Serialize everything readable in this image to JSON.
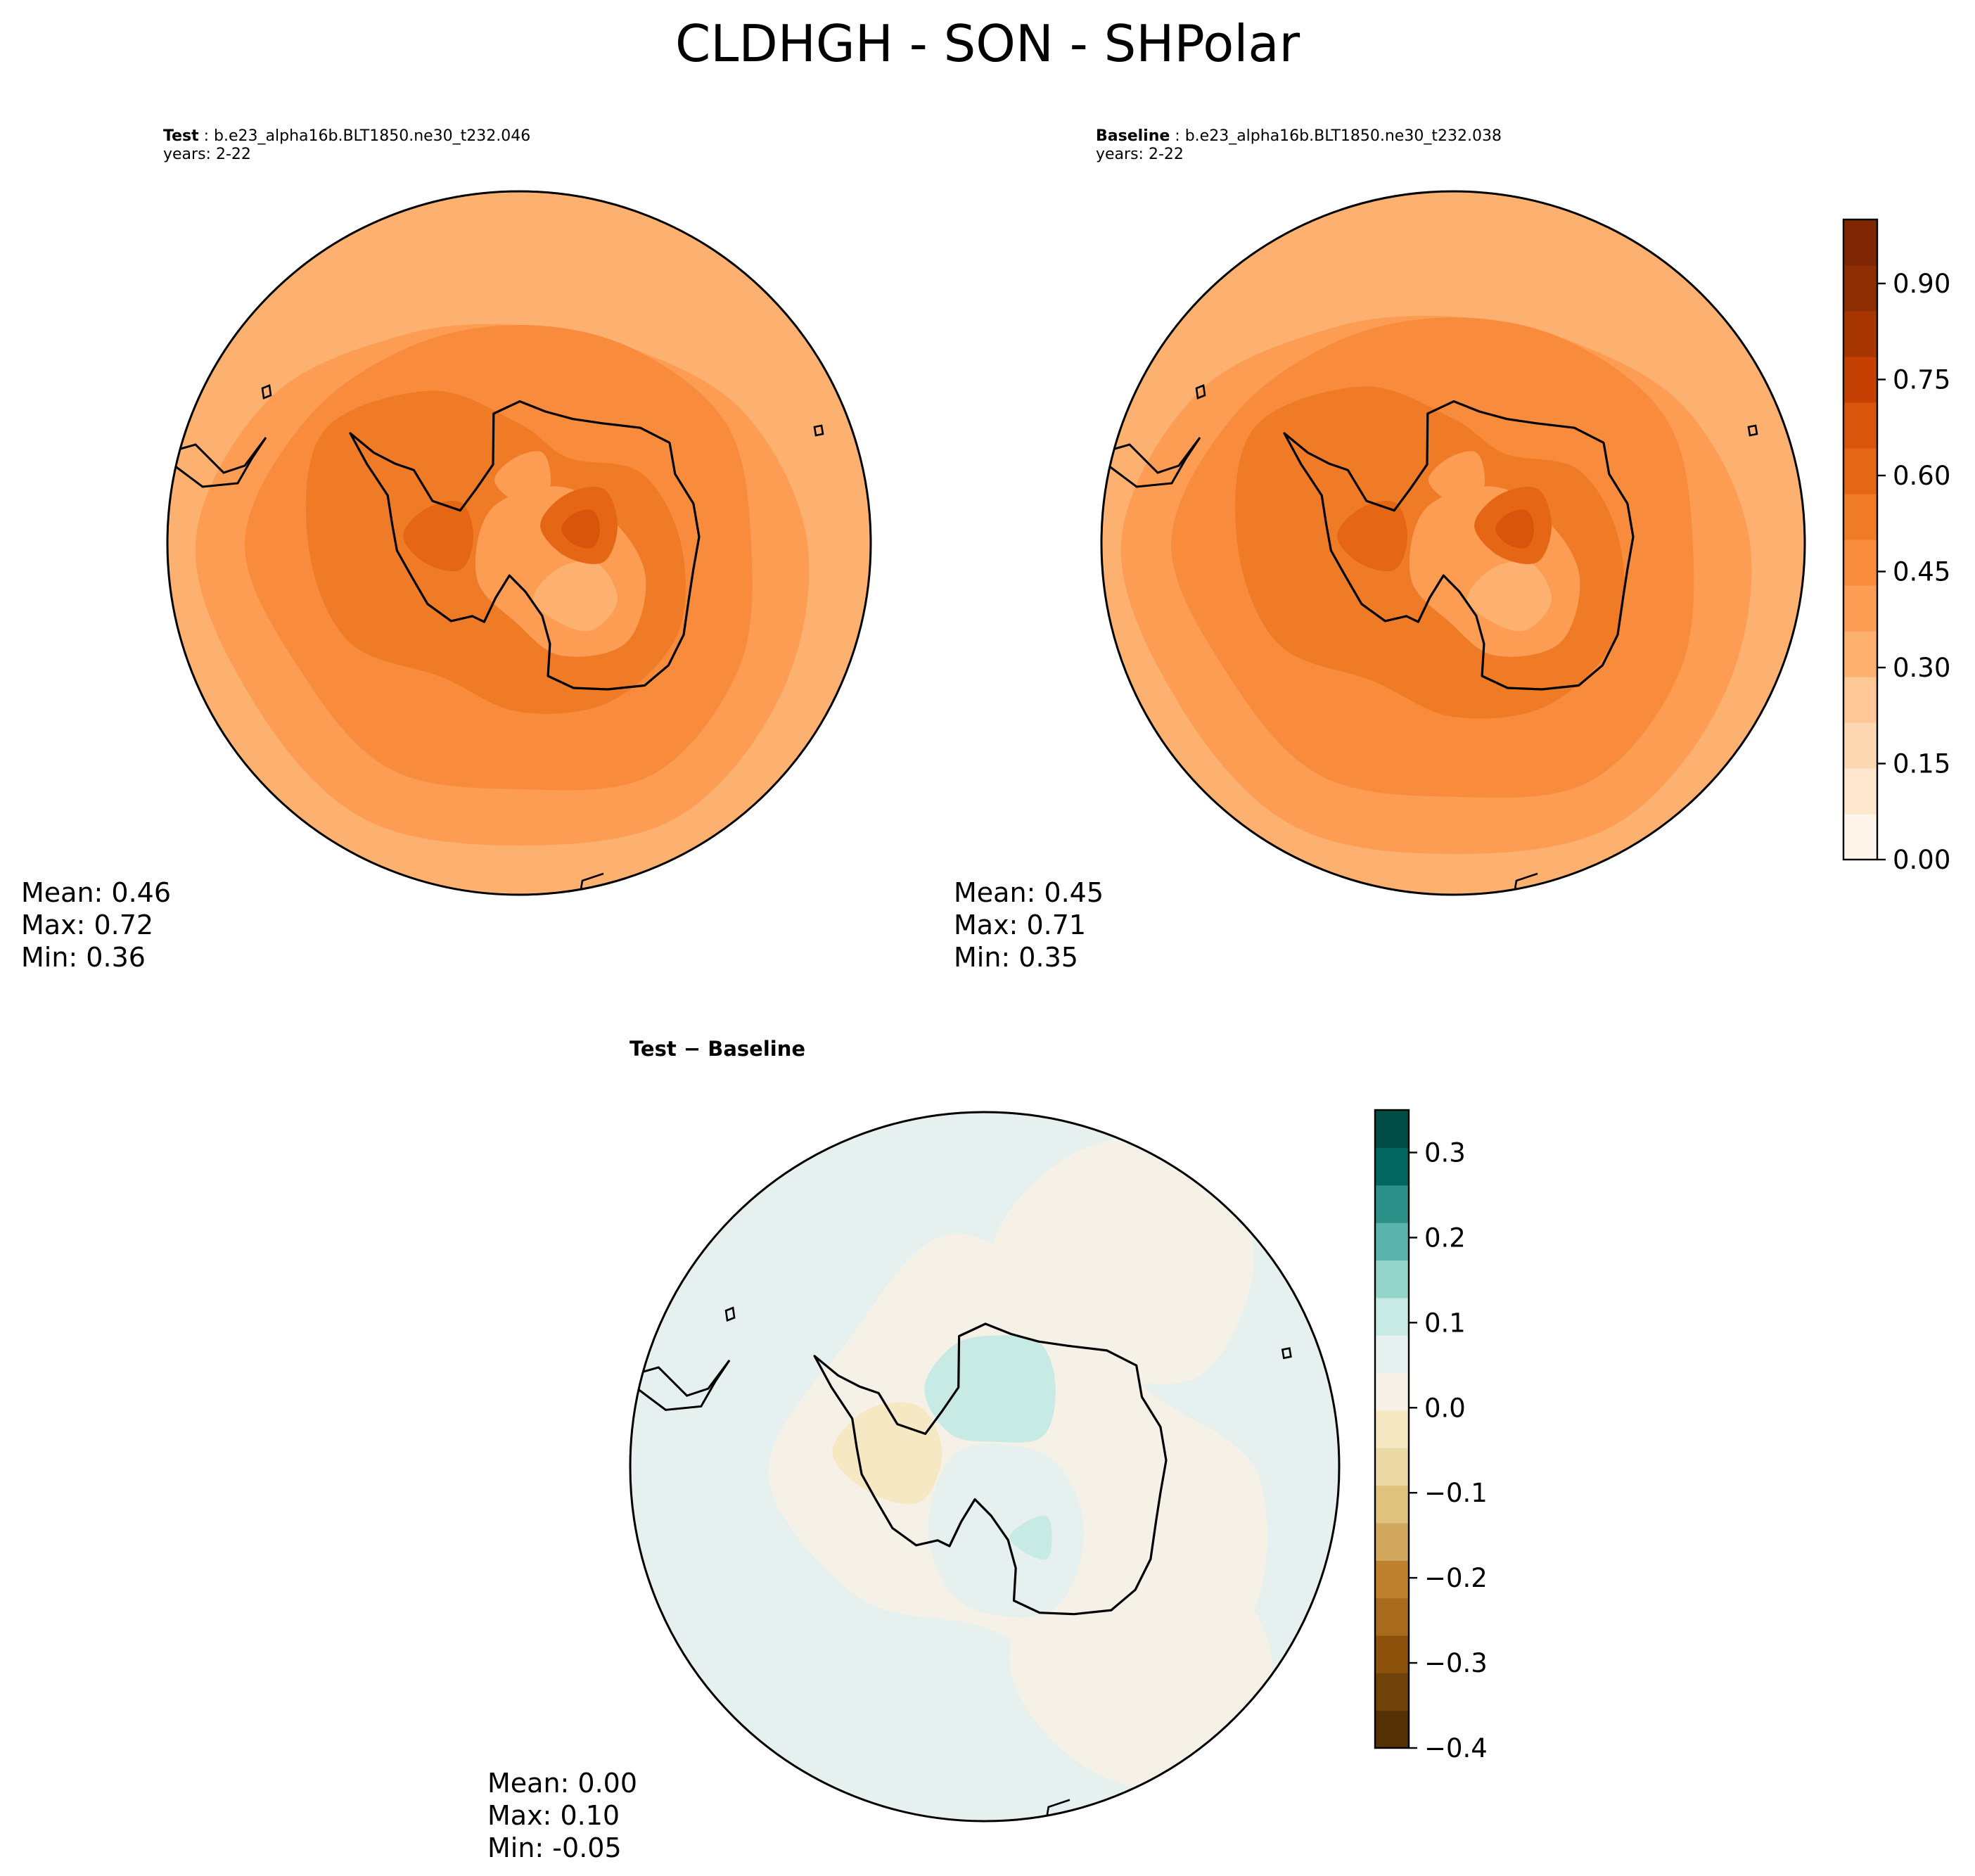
{
  "figure": {
    "title": "CLDHGH - SON - SHPolar"
  },
  "panels": {
    "test": {
      "label": "Test",
      "case": "b.e23_alpha16b.BLT1850.ne30_t232.046",
      "years": "years: 2-22",
      "stats": {
        "mean": "Mean:  0.46",
        "max": "Max:  0.72",
        "min": "Min:  0.36"
      }
    },
    "baseline": {
      "label": "Baseline",
      "case": "b.e23_alpha16b.BLT1850.ne30_t232.038",
      "years": "years: 2-22",
      "stats": {
        "mean": "Mean:  0.45",
        "max": "Max:  0.71",
        "min": "Min:  0.35"
      }
    },
    "diff": {
      "title": "Test − Baseline",
      "stats": {
        "mean": "Mean:  0.00",
        "max": "Max:  0.10",
        "min": "Min: -0.05"
      }
    }
  },
  "chart_data": [
    {
      "type": "heatmap",
      "name": "test",
      "projection": "south polar stereographic",
      "value_range": [
        0.36,
        0.72
      ],
      "mean": 0.46
    },
    {
      "type": "heatmap",
      "name": "baseline",
      "projection": "south polar stereographic",
      "value_range": [
        0.35,
        0.71
      ],
      "mean": 0.45
    },
    {
      "type": "heatmap",
      "name": "difference",
      "projection": "south polar stereographic",
      "value_range": [
        -0.05,
        0.1
      ],
      "mean": 0.0
    }
  ],
  "colorbars": {
    "main": {
      "range": [
        0.0,
        1.0
      ],
      "ticks": [
        "0.00",
        "0.15",
        "0.30",
        "0.45",
        "0.60",
        "0.75",
        "0.90"
      ],
      "tick_values": [
        0.0,
        0.15,
        0.3,
        0.45,
        0.6,
        0.75,
        0.9
      ],
      "colors": [
        "#fff5eb",
        "#fee6ce",
        "#fdd7b1",
        "#fdc895",
        "#fdb170",
        "#fd9d53",
        "#f98c3c",
        "#f07b27",
        "#e56716",
        "#d9550b",
        "#c44103",
        "#a83603",
        "#8f2d04",
        "#7f2704"
      ]
    },
    "diff": {
      "range": [
        -0.4,
        0.35
      ],
      "ticks": [
        "−0.4",
        "−0.3",
        "−0.2",
        "−0.1",
        "0.0",
        "0.1",
        "0.2",
        "0.3"
      ],
      "tick_values": [
        -0.4,
        -0.3,
        -0.2,
        -0.1,
        0.0,
        0.1,
        0.2,
        0.3
      ],
      "colors": [
        "#543005",
        "#6f4209",
        "#8c510a",
        "#a86b1d",
        "#bf812d",
        "#d2a85f",
        "#dfc27d",
        "#ebd9a6",
        "#f6e8c3",
        "#f5f1e6",
        "#e6f1ef",
        "#c7eae5",
        "#94d4c9",
        "#5ab4ac",
        "#2c8f88",
        "#01665e",
        "#004d45"
      ]
    }
  },
  "colors": {
    "ocean_test": "#fd9d53",
    "ocean_outer_test": "#fdb170",
    "land_test": "#f07b27",
    "ocean_base": "#fd9d53",
    "diff_neutral_pos": "#e6f1ef",
    "diff_neutral_neg": "#f5f1e6"
  }
}
